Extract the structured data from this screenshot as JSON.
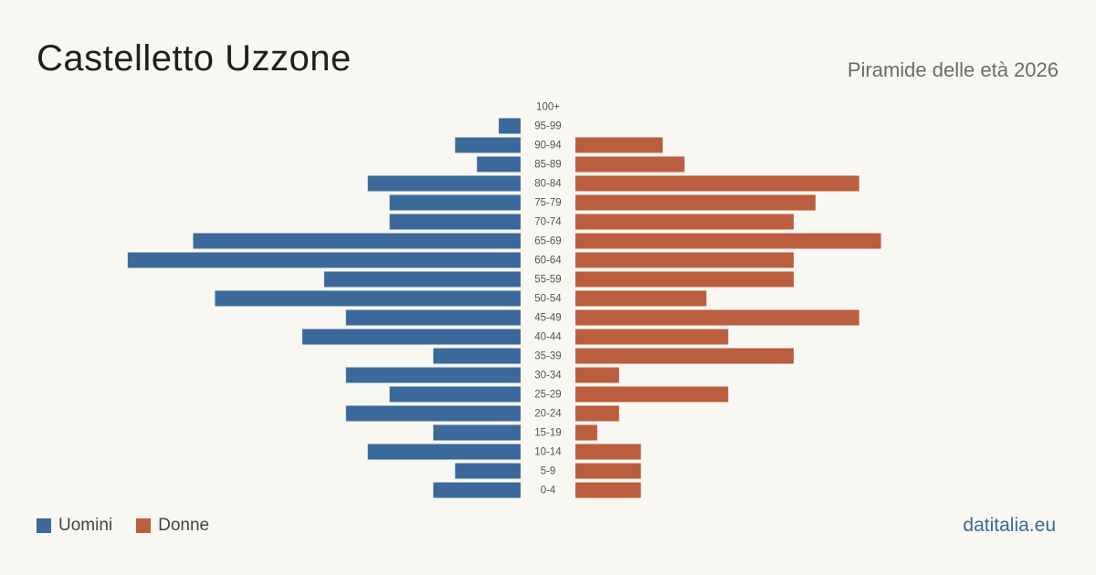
{
  "header": {
    "title": "Castelletto Uzzone",
    "subtitle": "Piramide delle età 2026"
  },
  "legend": {
    "men_label": "Uomini",
    "women_label": "Donne"
  },
  "source": "datitalia.eu",
  "colors": {
    "men": "#3b6a9a",
    "women": "#bb5e3f",
    "background": "#f9f7f2"
  },
  "chart_data": {
    "type": "bar",
    "orientation": "horizontal-pyramid",
    "title": "Castelletto Uzzone",
    "subtitle": "Piramide delle età 2026",
    "categories": [
      "100+",
      "95-99",
      "90-94",
      "85-89",
      "80-84",
      "75-79",
      "70-74",
      "65-69",
      "60-64",
      "55-59",
      "50-54",
      "45-49",
      "40-44",
      "35-39",
      "30-34",
      "25-29",
      "20-24",
      "15-19",
      "10-14",
      "5-9",
      "0-4"
    ],
    "series": [
      {
        "name": "Uomini",
        "color": "#3b6a9a",
        "values": [
          0,
          1,
          3,
          2,
          7,
          6,
          6,
          15,
          18,
          9,
          14,
          8,
          10,
          4,
          8,
          6,
          8,
          4,
          7,
          3,
          4
        ]
      },
      {
        "name": "Donne",
        "color": "#bb5e3f",
        "values": [
          0,
          0,
          4,
          5,
          13,
          11,
          10,
          14,
          10,
          10,
          6,
          13,
          7,
          10,
          2,
          7,
          2,
          1,
          3,
          3,
          3
        ]
      }
    ],
    "legend_position": "bottom-left",
    "grid": false
  }
}
